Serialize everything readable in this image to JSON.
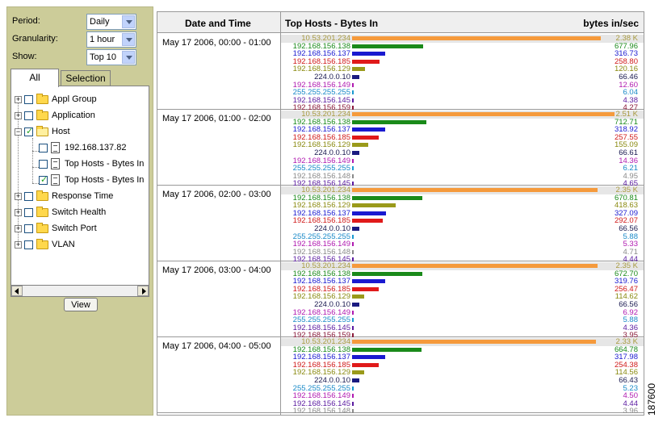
{
  "controls": {
    "period": {
      "label": "Period:",
      "value": "Daily"
    },
    "granularity": {
      "label": "Granularity:",
      "value": "1 hour"
    },
    "show": {
      "label": "Show:",
      "value": "Top 10"
    }
  },
  "tabs": {
    "all": "All",
    "selection": "Selection"
  },
  "tree": {
    "appl_group": "Appl Group",
    "application": "Application",
    "host": "Host",
    "host_ip": "192.168.137.82",
    "host_top1": "Top Hosts - Bytes In",
    "host_top2": "Top Hosts - Bytes In",
    "response_time": "Response Time",
    "switch_health": "Switch Health",
    "switch_port": "Switch Port",
    "vlan": "VLAN"
  },
  "view_button": "View",
  "table": {
    "col_datetime": "Date and Time",
    "col_title": "Top Hosts - Bytes In",
    "col_unit": "bytes in/sec"
  },
  "max_value": 2510,
  "periods": [
    {
      "time": "May 17 2006, 00:00 - 01:00",
      "hosts": [
        {
          "name": "10.53.201.234",
          "value": "2.38 K",
          "num": 2380,
          "color": "#f59a3c",
          "text": "#a89a40"
        },
        {
          "name": "192.168.156.138",
          "value": "677.96",
          "num": 677.96,
          "color": "#1a8a1a",
          "text": "#1a8a1a"
        },
        {
          "name": "192.168.156.137",
          "value": "316.73",
          "num": 316.73,
          "color": "#1a1ad0",
          "text": "#1a1ad0"
        },
        {
          "name": "192.168.156.185",
          "value": "258.80",
          "num": 258.8,
          "color": "#e01a1a",
          "text": "#d01a1a"
        },
        {
          "name": "192.168.156.129",
          "value": "120.16",
          "num": 120.16,
          "color": "#9a9a1a",
          "text": "#8a8a10"
        },
        {
          "name": "224.0.0.10",
          "value": "66.46",
          "num": 66.46,
          "color": "#1a1a80",
          "text": "#1a1a50"
        },
        {
          "name": "192.168.156.149",
          "value": "12.60",
          "num": 12.6,
          "color": "#b01ab0",
          "text": "#b01ab0"
        },
        {
          "name": "255.255.255.255",
          "value": "6.04",
          "num": 6.04,
          "color": "#1a9ad0",
          "text": "#1a8ac8"
        },
        {
          "name": "192.168.156.145",
          "value": "4.38",
          "num": 4.38,
          "color": "#5a1aa0",
          "text": "#5a1aa0"
        },
        {
          "name": "192.168.156.159",
          "value": "4.27",
          "num": 4.27,
          "color": "#8a1a3a",
          "text": "#8a1a3a"
        }
      ]
    },
    {
      "time": "May 17 2006, 01:00 - 02:00",
      "hosts": [
        {
          "name": "10.53.201.234",
          "value": "2.51 K",
          "num": 2510,
          "color": "#f59a3c",
          "text": "#a89a40"
        },
        {
          "name": "192.168.156.138",
          "value": "712.71",
          "num": 712.71,
          "color": "#1a8a1a",
          "text": "#1a8a1a"
        },
        {
          "name": "192.168.156.137",
          "value": "318.92",
          "num": 318.92,
          "color": "#1a1ad0",
          "text": "#1a1ad0"
        },
        {
          "name": "192.168.156.185",
          "value": "257.55",
          "num": 257.55,
          "color": "#e01a1a",
          "text": "#d01a1a"
        },
        {
          "name": "192.168.156.129",
          "value": "155.09",
          "num": 155.09,
          "color": "#9a9a1a",
          "text": "#8a8a10"
        },
        {
          "name": "224.0.0.10",
          "value": "66.61",
          "num": 66.61,
          "color": "#1a1a80",
          "text": "#1a1a50"
        },
        {
          "name": "192.168.156.149",
          "value": "14.36",
          "num": 14.36,
          "color": "#b01ab0",
          "text": "#b01ab0"
        },
        {
          "name": "255.255.255.255",
          "value": "6.21",
          "num": 6.21,
          "color": "#1a9ad0",
          "text": "#1a8ac8"
        },
        {
          "name": "192.168.156.148",
          "value": "4.95",
          "num": 4.95,
          "color": "#8a8a8a",
          "text": "#8a8a8a"
        },
        {
          "name": "192.168.156.145",
          "value": "4.65",
          "num": 4.65,
          "color": "#5a1aa0",
          "text": "#5a1aa0"
        }
      ]
    },
    {
      "time": "May 17 2006, 02:00 - 03:00",
      "hosts": [
        {
          "name": "10.53.201.234",
          "value": "2.35 K",
          "num": 2350,
          "color": "#f59a3c",
          "text": "#a89a40"
        },
        {
          "name": "192.168.156.138",
          "value": "670.81",
          "num": 670.81,
          "color": "#1a8a1a",
          "text": "#1a8a1a"
        },
        {
          "name": "192.168.156.129",
          "value": "418.63",
          "num": 418.63,
          "color": "#9a9a1a",
          "text": "#8a8a10"
        },
        {
          "name": "192.168.156.137",
          "value": "327.09",
          "num": 327.09,
          "color": "#1a1ad0",
          "text": "#1a1ad0"
        },
        {
          "name": "192.168.156.185",
          "value": "292.07",
          "num": 292.07,
          "color": "#e01a1a",
          "text": "#d01a1a"
        },
        {
          "name": "224.0.0.10",
          "value": "66.56",
          "num": 66.56,
          "color": "#1a1a80",
          "text": "#1a1a50"
        },
        {
          "name": "255.255.255.255",
          "value": "5.88",
          "num": 5.88,
          "color": "#1a9ad0",
          "text": "#1a8ac8"
        },
        {
          "name": "192.168.156.149",
          "value": "5.33",
          "num": 5.33,
          "color": "#b01ab0",
          "text": "#b01ab0"
        },
        {
          "name": "192.168.156.148",
          "value": "4.71",
          "num": 4.71,
          "color": "#8a8a8a",
          "text": "#8a8a8a"
        },
        {
          "name": "192.168.156.145",
          "value": "4.44",
          "num": 4.44,
          "color": "#5a1aa0",
          "text": "#5a1aa0"
        }
      ]
    },
    {
      "time": "May 17 2006, 03:00 - 04:00",
      "hosts": [
        {
          "name": "10.53.201.234",
          "value": "2.35 K",
          "num": 2350,
          "color": "#f59a3c",
          "text": "#a89a40"
        },
        {
          "name": "192.168.156.138",
          "value": "672.70",
          "num": 672.7,
          "color": "#1a8a1a",
          "text": "#1a8a1a"
        },
        {
          "name": "192.168.156.137",
          "value": "319.76",
          "num": 319.76,
          "color": "#1a1ad0",
          "text": "#1a1ad0"
        },
        {
          "name": "192.168.156.185",
          "value": "256.47",
          "num": 256.47,
          "color": "#e01a1a",
          "text": "#d01a1a"
        },
        {
          "name": "192.168.156.129",
          "value": "114.62",
          "num": 114.62,
          "color": "#9a9a1a",
          "text": "#8a8a10"
        },
        {
          "name": "224.0.0.10",
          "value": "66.56",
          "num": 66.56,
          "color": "#1a1a80",
          "text": "#1a1a50"
        },
        {
          "name": "192.168.156.149",
          "value": "6.92",
          "num": 6.92,
          "color": "#b01ab0",
          "text": "#b01ab0"
        },
        {
          "name": "255.255.255.255",
          "value": "5.88",
          "num": 5.88,
          "color": "#1a9ad0",
          "text": "#1a8ac8"
        },
        {
          "name": "192.168.156.145",
          "value": "4.36",
          "num": 4.36,
          "color": "#5a1aa0",
          "text": "#5a1aa0"
        },
        {
          "name": "192.168.156.159",
          "value": "3.95",
          "num": 3.95,
          "color": "#8a1a3a",
          "text": "#8a1a3a"
        }
      ]
    },
    {
      "time": "May 17 2006, 04:00 - 05:00",
      "hosts": [
        {
          "name": "10.53.201.234",
          "value": "2.33 K",
          "num": 2330,
          "color": "#f59a3c",
          "text": "#a89a40"
        },
        {
          "name": "192.168.156.138",
          "value": "664.78",
          "num": 664.78,
          "color": "#1a8a1a",
          "text": "#1a8a1a"
        },
        {
          "name": "192.168.156.137",
          "value": "317.98",
          "num": 317.98,
          "color": "#1a1ad0",
          "text": "#1a1ad0"
        },
        {
          "name": "192.168.156.185",
          "value": "254.38",
          "num": 254.38,
          "color": "#e01a1a",
          "text": "#d01a1a"
        },
        {
          "name": "192.168.156.129",
          "value": "114.56",
          "num": 114.56,
          "color": "#9a9a1a",
          "text": "#8a8a10"
        },
        {
          "name": "224.0.0.10",
          "value": "66.43",
          "num": 66.43,
          "color": "#1a1a80",
          "text": "#1a1a50"
        },
        {
          "name": "255.255.255.255",
          "value": "5.23",
          "num": 5.23,
          "color": "#1a9ad0",
          "text": "#1a8ac8"
        },
        {
          "name": "192.168.156.149",
          "value": "4.50",
          "num": 4.5,
          "color": "#b01ab0",
          "text": "#b01ab0"
        },
        {
          "name": "192.168.156.145",
          "value": "4.44",
          "num": 4.44,
          "color": "#5a1aa0",
          "text": "#5a1aa0"
        },
        {
          "name": "192.168.156.148",
          "value": "3.96",
          "num": 3.96,
          "color": "#8a8a8a",
          "text": "#8a8a8a"
        }
      ]
    }
  ],
  "figure_id": "187600"
}
